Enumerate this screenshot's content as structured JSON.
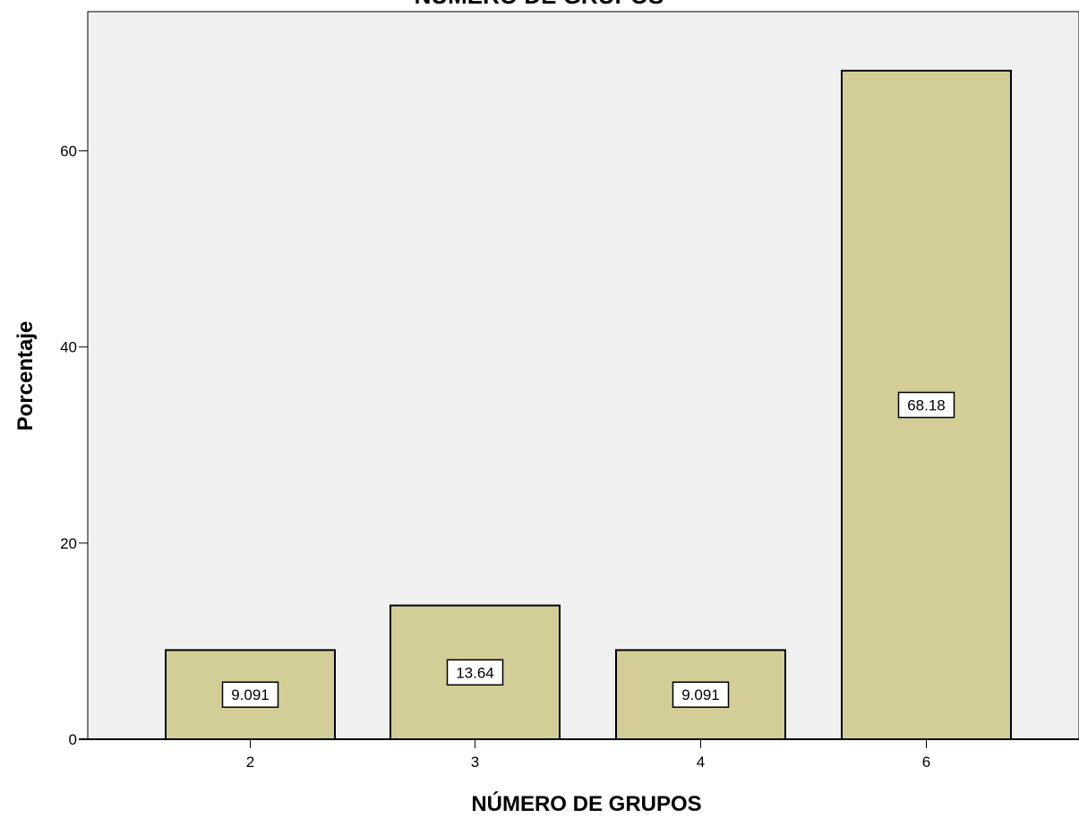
{
  "chart_data": {
    "type": "bar",
    "title": "NÚMERO DE GRUPOS",
    "xlabel": "NÚMERO DE GRUPOS",
    "ylabel": "Porcentaje",
    "categories": [
      "2",
      "3",
      "4",
      "6"
    ],
    "values": [
      9.091,
      13.64,
      9.091,
      68.18
    ],
    "data_labels": [
      "9.091",
      "13.64",
      "9.091",
      "68.18"
    ],
    "yticks": [
      0,
      20,
      40,
      60
    ],
    "ytick_labels": [
      "0",
      "20",
      "40",
      "60"
    ],
    "ylim": [
      0,
      74.2
    ],
    "grid": false,
    "legend": "none",
    "colors": {
      "plot_background": "#f0f0f0",
      "bar_fill": "#d3ce97",
      "bar_stroke": "#000000",
      "label_box": "#ffffff"
    }
  }
}
